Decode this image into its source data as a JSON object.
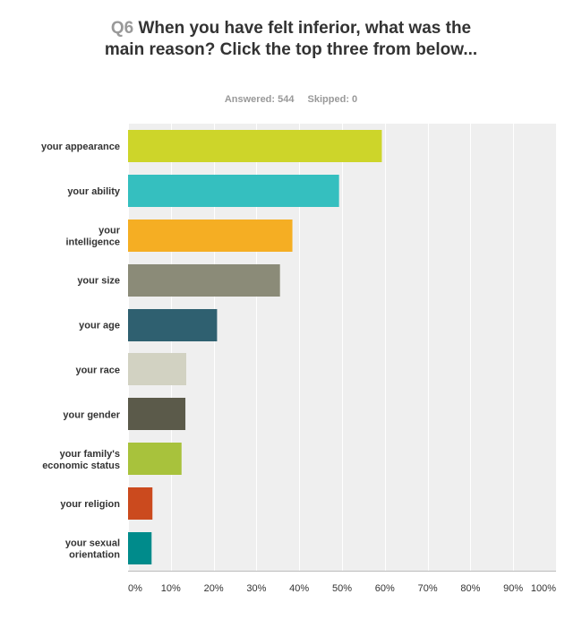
{
  "question": {
    "number": "Q6",
    "text": "When you have felt inferior, what was the main reason? Click the top three from below..."
  },
  "stats": {
    "answered": "Answered: 544",
    "skipped": "Skipped: 0"
  },
  "chart_data": {
    "type": "bar",
    "orientation": "horizontal",
    "categories": [
      [
        "your appearance"
      ],
      [
        "your ability"
      ],
      [
        "your",
        "intelligence"
      ],
      [
        "your size"
      ],
      [
        "your age"
      ],
      [
        "your race"
      ],
      [
        "your gender"
      ],
      [
        "your family's",
        "economic status"
      ],
      [
        "your religion"
      ],
      [
        "your sexual",
        "orientation"
      ]
    ],
    "values": [
      59.3,
      49.3,
      38.4,
      35.5,
      20.8,
      13.6,
      13.4,
      12.5,
      5.7,
      5.5
    ],
    "colors": [
      "#cdd52a",
      "#35bfbf",
      "#f5ae23",
      "#8b8b78",
      "#2f6070",
      "#d2d2c2",
      "#5b5a4a",
      "#a8c23c",
      "#cb4a1e",
      "#008b8b"
    ],
    "xlim": [
      0,
      100
    ],
    "xticks": [
      "0%",
      "10%",
      "20%",
      "30%",
      "40%",
      "50%",
      "60%",
      "70%",
      "80%",
      "90%",
      "100%"
    ],
    "grid": true,
    "plot_background": "#efefef"
  }
}
